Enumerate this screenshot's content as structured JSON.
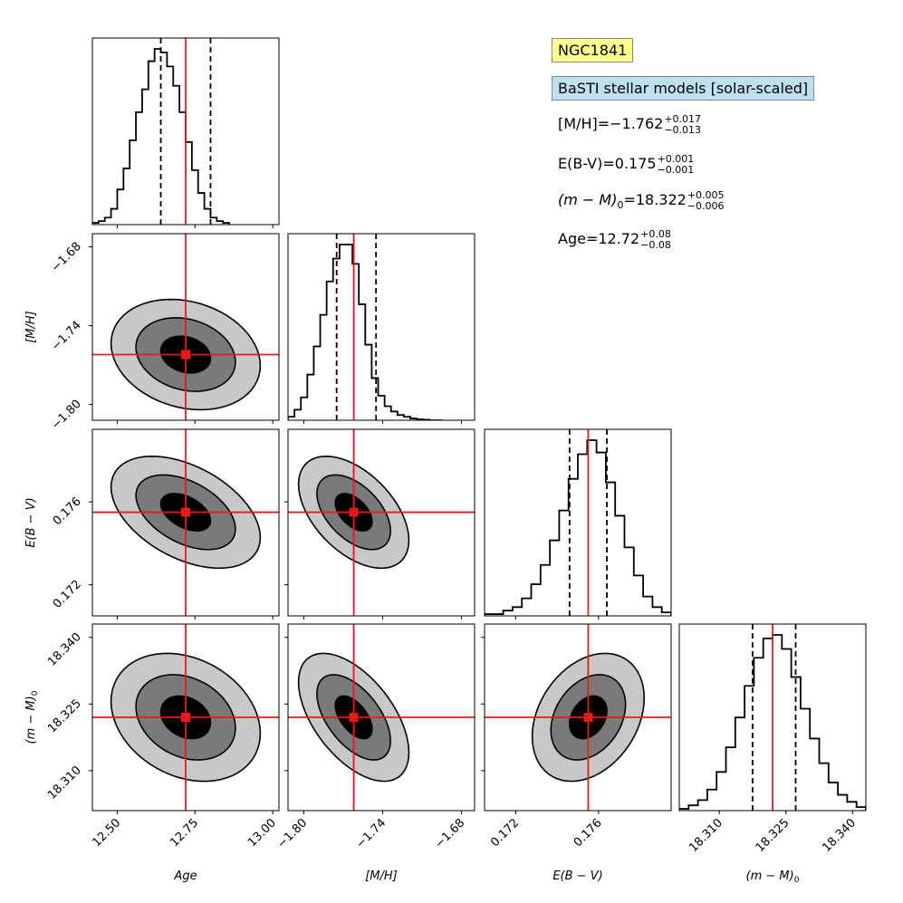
{
  "annotations": {
    "object_name": "NGC1841",
    "models_label": "BaSTI stellar models [solar-scaled]",
    "results": [
      {
        "name": "[M/H]",
        "value": "−1.762",
        "plus": "+0.017",
        "minus": "−0.013"
      },
      {
        "name": "E(B-V)",
        "value": "0.175",
        "plus": "+0.001",
        "minus": "−0.001"
      },
      {
        "name": "(m − M)",
        "sub": "0",
        "value": "18.322",
        "plus": "+0.005",
        "minus": "−0.006"
      },
      {
        "name": "Age",
        "value": "12.72",
        "plus": "+0.08",
        "minus": "−0.08"
      }
    ]
  },
  "colors": {
    "truth": "#e8191b",
    "hist": "#000000",
    "contour_outer": "#c8c8c8",
    "contour_mid": "#7a7a7a",
    "contour_inner": "#000000"
  },
  "chart_data": {
    "type": "corner",
    "parameters": [
      {
        "key": "age",
        "label": "Age",
        "range": [
          12.42,
          13.02
        ],
        "ticks": [
          12.5,
          12.75,
          13.0
        ],
        "tick_labels": [
          "12.50",
          "12.75",
          "13.00"
        ],
        "truth": 12.72,
        "q16": 12.64,
        "q84": 12.8
      },
      {
        "key": "mh",
        "label": "[M/H]",
        "range": [
          -1.812,
          -1.67
        ],
        "ticks": [
          -1.8,
          -1.74,
          -1.68
        ],
        "tick_labels": [
          "−1.80",
          "−1.74",
          "−1.68"
        ],
        "truth": -1.762,
        "q16": -1.775,
        "q84": -1.745
      },
      {
        "key": "ebv",
        "label": "E(B − V)",
        "range": [
          0.1705,
          0.1795
        ],
        "ticks": [
          0.172,
          0.176
        ],
        "tick_labels": [
          "0.172",
          "0.176"
        ],
        "truth": 0.1755,
        "q16": 0.1746,
        "q84": 0.1764
      },
      {
        "key": "dm",
        "label": "(m − M)",
        "label_sub": "0",
        "range": [
          18.301,
          18.343
        ],
        "ticks": [
          18.31,
          18.325,
          18.34
        ],
        "tick_labels": [
          "18.310",
          "18.325",
          "18.340"
        ],
        "truth": 18.322,
        "q16": 18.3175,
        "q84": 18.3272
      }
    ],
    "histograms": [
      {
        "param": "age",
        "bin_start": 12.42,
        "bin_width": 0.02,
        "counts": [
          0.01,
          0.02,
          0.04,
          0.09,
          0.2,
          0.32,
          0.48,
          0.64,
          0.77,
          0.93,
          1.0,
          0.98,
          0.9,
          0.79,
          0.64,
          0.47,
          0.31,
          0.18,
          0.09,
          0.04,
          0.02,
          0.01
        ]
      },
      {
        "param": "mh",
        "bin_start": -1.812,
        "bin_width": 0.0049,
        "counts": [
          0.02,
          0.06,
          0.13,
          0.26,
          0.42,
          0.6,
          0.79,
          0.92,
          1.0,
          1.0,
          0.89,
          0.66,
          0.43,
          0.24,
          0.14,
          0.08,
          0.05,
          0.03,
          0.02,
          0.01,
          0.005,
          0.003,
          0.0,
          0.0
        ]
      },
      {
        "param": "ebv",
        "bin_start": 0.1705,
        "bin_width": 0.00045,
        "counts": [
          0.01,
          0.01,
          0.03,
          0.05,
          0.1,
          0.18,
          0.29,
          0.43,
          0.6,
          0.78,
          0.92,
          1.0,
          0.93,
          0.76,
          0.57,
          0.39,
          0.23,
          0.11,
          0.05,
          0.02
        ]
      },
      {
        "param": "dm",
        "bin_start": 18.301,
        "bin_width": 0.0021,
        "counts": [
          0.01,
          0.03,
          0.06,
          0.12,
          0.22,
          0.36,
          0.53,
          0.71,
          0.87,
          0.98,
          1.0,
          0.92,
          0.76,
          0.58,
          0.41,
          0.27,
          0.16,
          0.09,
          0.05,
          0.02
        ]
      }
    ],
    "contours": [
      {
        "row": "mh",
        "col": "age",
        "sigma_x": 0.08,
        "sigma_y": 0.014,
        "rho": -0.2
      },
      {
        "row": "ebv",
        "col": "age",
        "sigma_x": 0.08,
        "sigma_y": 0.0009,
        "rho": -0.45
      },
      {
        "row": "ebv",
        "col": "mh",
        "sigma_x": 0.014,
        "sigma_y": 0.0009,
        "rho": -0.5
      },
      {
        "row": "dm",
        "col": "age",
        "sigma_x": 0.08,
        "sigma_y": 0.0048,
        "rho": -0.25
      },
      {
        "row": "dm",
        "col": "mh",
        "sigma_x": 0.014,
        "sigma_y": 0.0048,
        "rho": -0.55
      },
      {
        "row": "dm",
        "col": "ebv",
        "sigma_x": 0.0009,
        "sigma_y": 0.0048,
        "rho": 0.3
      }
    ],
    "contour_levels_sigma": [
      1.0,
      2.0,
      3.0
    ]
  }
}
